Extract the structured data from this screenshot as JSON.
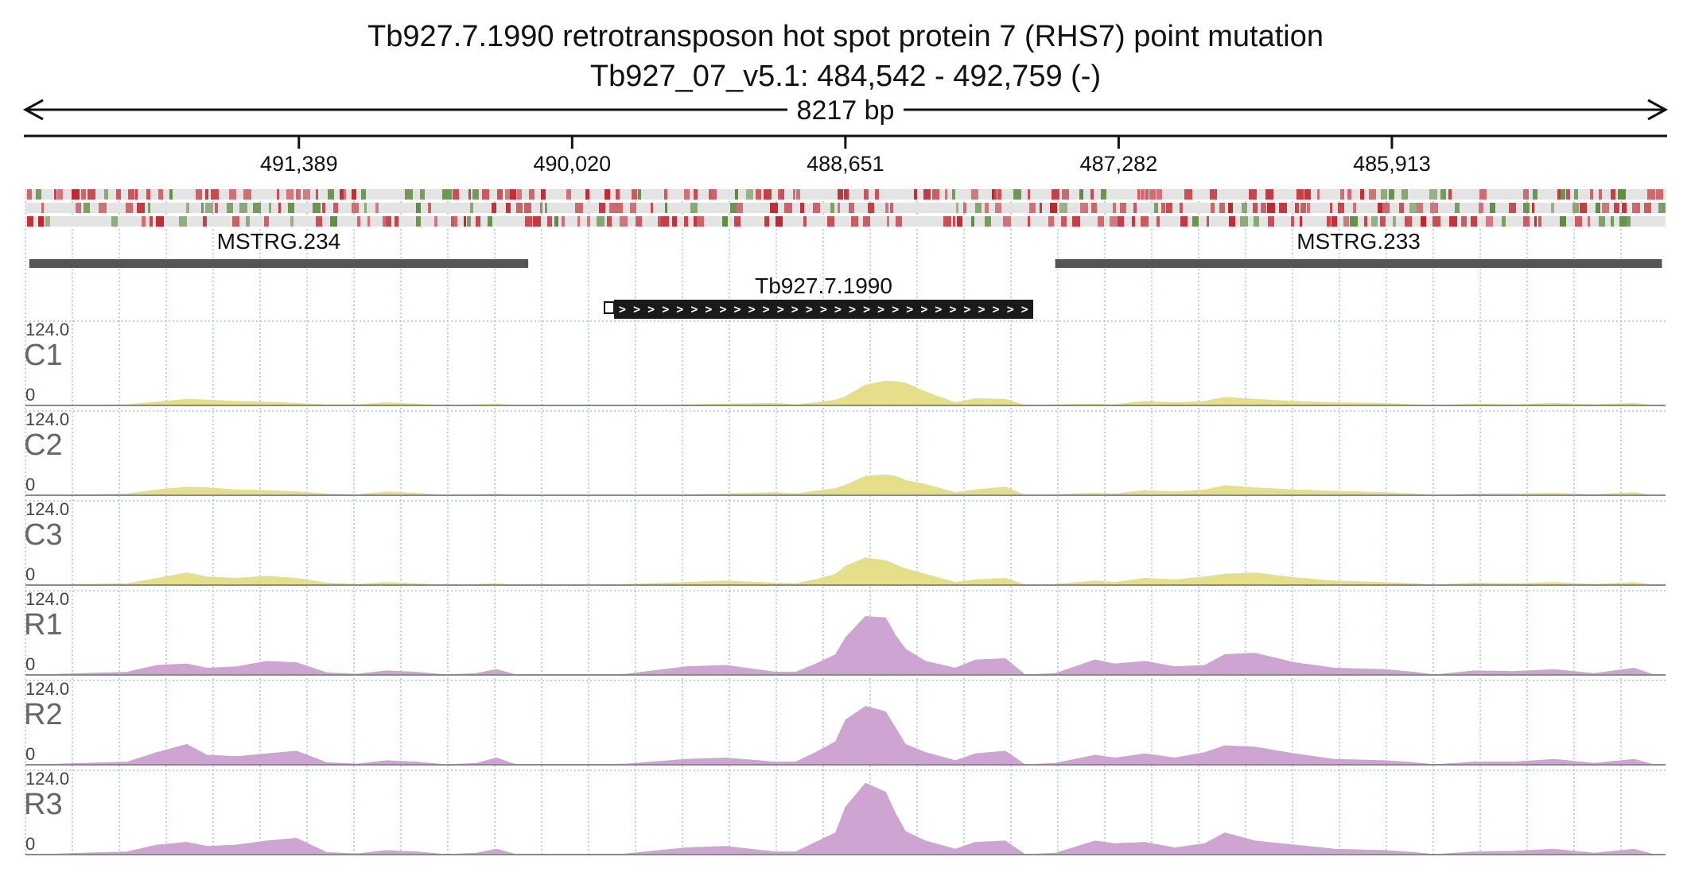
{
  "header": {
    "title_line1": "Tb927.7.1990  retrotransposon hot spot protein 7 (RHS7)  point mutation",
    "title_line2": "Tb927_07_v5.1: 484,542 - 492,759 (-)",
    "span_label": "8217 bp"
  },
  "chart_data": {
    "type": "area",
    "title": "Tb927.7.1990  retrotransposon hot spot protein 7 (RHS7)  point mutation",
    "subtitle": "Tb927_07_v5.1: 484,542 - 492,759 (-)",
    "region": {
      "chrom": "Tb927_07_v5.1",
      "start": 484542,
      "end": 492759,
      "strand": "-",
      "length_label": "8217 bp"
    },
    "axis": {
      "reversed": true,
      "xlim": [
        492759,
        484542
      ],
      "ticks": [
        491389,
        490020,
        488651,
        487282,
        485913
      ],
      "tick_labels": [
        "491,389",
        "490,020",
        "488,651",
        "487,282",
        "485,913"
      ]
    },
    "features": [
      {
        "name": "MSTRG.234",
        "start": 492740,
        "end": 490240,
        "style": "transcript"
      },
      {
        "name": "MSTRG.233",
        "start": 487600,
        "end": 484560,
        "style": "transcript"
      },
      {
        "name": "Tb927.7.1990",
        "start": 489810,
        "end": 487710,
        "style": "gene"
      }
    ],
    "ylim": [
      0,
      124.0
    ],
    "grid": true,
    "colors": {
      "control": "#e6df8a",
      "rhs": "#cda4d2",
      "variant_red": "#c0262d",
      "variant_green": "#5a8a3c"
    },
    "tracks": [
      {
        "name": "C1",
        "color": "#e6df8a",
        "scale_max_label": "124.0",
        "scale_min_label": "0",
        "x": [
          492700,
          492250,
          492100,
          491950,
          491850,
          491700,
          491550,
          491400,
          491250,
          491100,
          490950,
          490800,
          490650,
          490500,
          490400,
          490300,
          489900,
          489750,
          489450,
          489250,
          489000,
          488900,
          488800,
          488700,
          488650,
          488550,
          488450,
          488400,
          488350,
          488250,
          488100,
          488000,
          487850,
          487750,
          487600,
          487400,
          487300,
          487150,
          487000,
          486850,
          486750,
          486600,
          486400,
          486200,
          485950,
          485800,
          485700,
          485500,
          485300,
          485100,
          484900,
          484700,
          484600
        ],
        "values": [
          0,
          1,
          5,
          9,
          8,
          6,
          5,
          3,
          1,
          1,
          4,
          2,
          0,
          1,
          2,
          0,
          0,
          0,
          1,
          2,
          3,
          1,
          4,
          8,
          13,
          30,
          36,
          35,
          33,
          20,
          4,
          10,
          9,
          0,
          1,
          2,
          1,
          6,
          4,
          6,
          12,
          9,
          6,
          4,
          3,
          1,
          0,
          2,
          1,
          3,
          1,
          3,
          0
        ]
      },
      {
        "name": "C2",
        "color": "#e6df8a",
        "scale_max_label": "124.0",
        "scale_min_label": "0",
        "x": [
          492700,
          492250,
          492100,
          491950,
          491850,
          491700,
          491550,
          491400,
          491250,
          491100,
          490950,
          490800,
          490650,
          490500,
          490400,
          490300,
          489900,
          489750,
          489450,
          489250,
          489000,
          488900,
          488800,
          488700,
          488650,
          488550,
          488450,
          488400,
          488350,
          488250,
          488100,
          488000,
          487850,
          487750,
          487600,
          487400,
          487300,
          487150,
          487000,
          486850,
          486750,
          486600,
          486400,
          486200,
          485950,
          485800,
          485700,
          485500,
          485300,
          485100,
          484900,
          484700,
          484600
        ],
        "values": [
          0,
          2,
          8,
          12,
          11,
          8,
          7,
          5,
          2,
          1,
          5,
          3,
          0,
          1,
          2,
          0,
          0,
          0,
          1,
          2,
          4,
          2,
          6,
          10,
          15,
          28,
          30,
          28,
          22,
          16,
          4,
          8,
          12,
          0,
          1,
          3,
          2,
          7,
          5,
          8,
          14,
          11,
          8,
          6,
          4,
          2,
          0,
          2,
          2,
          3,
          1,
          4,
          0
        ]
      },
      {
        "name": "C3",
        "color": "#e6df8a",
        "scale_max_label": "124.0",
        "scale_min_label": "0",
        "x": [
          492700,
          492250,
          492100,
          491950,
          491850,
          491700,
          491550,
          491400,
          491250,
          491100,
          490950,
          490800,
          490650,
          490500,
          490400,
          490300,
          489900,
          489750,
          489450,
          489250,
          489000,
          488900,
          488800,
          488700,
          488650,
          488550,
          488450,
          488400,
          488350,
          488250,
          488100,
          488000,
          487850,
          487750,
          487600,
          487400,
          487300,
          487150,
          487000,
          486850,
          486750,
          486600,
          486400,
          486200,
          485950,
          485800,
          485700,
          485500,
          485300,
          485100,
          484900,
          484700,
          484600
        ],
        "values": [
          0,
          2,
          10,
          18,
          12,
          10,
          13,
          10,
          3,
          1,
          4,
          2,
          0,
          1,
          2,
          0,
          0,
          1,
          4,
          6,
          3,
          2,
          8,
          16,
          28,
          40,
          36,
          30,
          24,
          16,
          4,
          8,
          10,
          0,
          1,
          6,
          4,
          10,
          8,
          12,
          16,
          18,
          11,
          6,
          4,
          2,
          0,
          3,
          2,
          4,
          1,
          4,
          0
        ]
      },
      {
        "name": "R1",
        "color": "#cda4d2",
        "scale_max_label": "124.0",
        "scale_min_label": "0",
        "x": [
          492700,
          492250,
          492100,
          491950,
          491850,
          491700,
          491550,
          491400,
          491250,
          491100,
          490950,
          490800,
          490650,
          490500,
          490400,
          490300,
          489900,
          489750,
          489450,
          489250,
          489000,
          488900,
          488800,
          488700,
          488650,
          488550,
          488450,
          488400,
          488350,
          488250,
          488100,
          488000,
          487850,
          487750,
          487600,
          487400,
          487300,
          487150,
          487000,
          486850,
          486750,
          486600,
          486400,
          486200,
          485950,
          485800,
          485700,
          485500,
          485300,
          485100,
          484900,
          484700,
          484600
        ],
        "values": [
          0,
          4,
          14,
          16,
          10,
          12,
          20,
          18,
          3,
          1,
          6,
          4,
          0,
          2,
          8,
          0,
          0,
          1,
          12,
          14,
          4,
          4,
          16,
          30,
          55,
          86,
          84,
          58,
          38,
          20,
          10,
          22,
          24,
          0,
          2,
          22,
          16,
          20,
          12,
          14,
          30,
          32,
          18,
          10,
          8,
          4,
          0,
          6,
          5,
          8,
          2,
          10,
          0
        ]
      },
      {
        "name": "R2",
        "color": "#cda4d2",
        "scale_max_label": "124.0",
        "scale_min_label": "0",
        "x": [
          492700,
          492250,
          492100,
          491950,
          491850,
          491700,
          491550,
          491400,
          491250,
          491100,
          490950,
          490800,
          490650,
          490500,
          490400,
          490300,
          489900,
          489750,
          489450,
          489250,
          489000,
          488900,
          488800,
          488700,
          488650,
          488550,
          488450,
          488400,
          488350,
          488250,
          488100,
          488000,
          487850,
          487750,
          487600,
          487400,
          487300,
          487150,
          487000,
          486850,
          486750,
          486600,
          486400,
          486200,
          485950,
          485800,
          485700,
          485500,
          485300,
          485100,
          484900,
          484700,
          484600
        ],
        "values": [
          0,
          4,
          18,
          30,
          14,
          12,
          16,
          20,
          3,
          1,
          6,
          4,
          0,
          2,
          10,
          0,
          0,
          1,
          8,
          10,
          4,
          4,
          18,
          34,
          66,
          86,
          78,
          54,
          30,
          18,
          6,
          16,
          20,
          0,
          2,
          14,
          10,
          16,
          10,
          18,
          28,
          26,
          16,
          8,
          6,
          3,
          0,
          4,
          4,
          8,
          2,
          8,
          0
        ]
      },
      {
        "name": "R3",
        "color": "#cda4d2",
        "scale_max_label": "124.0",
        "scale_min_label": "0",
        "x": [
          492700,
          492250,
          492100,
          491950,
          491850,
          491700,
          491550,
          491400,
          491250,
          491100,
          490950,
          490800,
          490650,
          490500,
          490400,
          490300,
          489900,
          489750,
          489450,
          489250,
          489000,
          488900,
          488800,
          488700,
          488650,
          488550,
          488450,
          488400,
          488350,
          488250,
          488100,
          488000,
          487850,
          487750,
          487600,
          487400,
          487300,
          487150,
          487000,
          486850,
          486750,
          486600,
          486400,
          486200,
          485950,
          485800,
          485700,
          485500,
          485300,
          485100,
          484900,
          484700,
          484600
        ],
        "values": [
          0,
          4,
          14,
          18,
          12,
          14,
          20,
          24,
          3,
          1,
          6,
          4,
          0,
          2,
          8,
          0,
          0,
          1,
          10,
          12,
          4,
          4,
          18,
          32,
          70,
          105,
          92,
          60,
          34,
          20,
          8,
          18,
          20,
          0,
          2,
          20,
          16,
          18,
          10,
          16,
          32,
          20,
          14,
          8,
          6,
          3,
          0,
          4,
          5,
          8,
          2,
          8,
          0
        ]
      }
    ]
  }
}
